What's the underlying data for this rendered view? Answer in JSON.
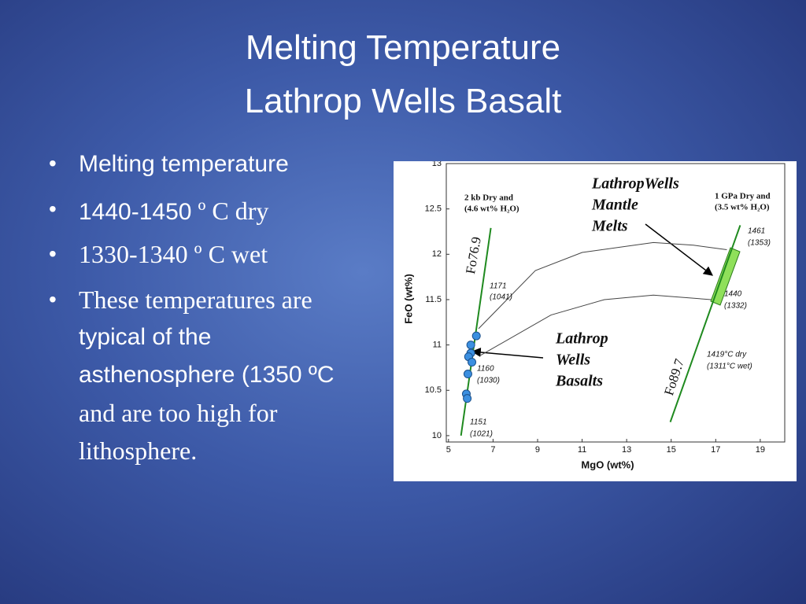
{
  "slide": {
    "title": [
      "Melting Temperature",
      "Lathrop Wells Basalt"
    ],
    "bullets": [
      [
        "Melting temperature"
      ],
      [
        "1440-1450",
        " º C dry"
      ],
      [
        "1330-1340 º C wet"
      ],
      [
        "These temperatures are",
        "typical of the",
        "asthenosphere (1350 ºC",
        "and are too high for",
        "lithosphere."
      ]
    ]
  },
  "chart_data": {
    "type": "scatter",
    "xlabel": "MgO (wt%)",
    "ylabel": "FeO (wt%)",
    "xlim": [
      4.9,
      20.1
    ],
    "ylim": [
      9.93,
      13
    ],
    "xticks": [
      5,
      7,
      9,
      11,
      13,
      15,
      17,
      19
    ],
    "yticks": [
      10,
      10.5,
      11,
      11.5,
      12,
      12.5,
      13
    ],
    "points": {
      "color": "#3b8fe0",
      "x": [
        6.25,
        6.0,
        6.0,
        5.9,
        6.05,
        5.87,
        5.8,
        5.84
      ],
      "y": [
        11.1,
        11.0,
        10.91,
        10.87,
        10.81,
        10.68,
        10.46,
        10.41
      ]
    },
    "lines": [
      {
        "label": "Fo76.9",
        "color": "#1f8a1f",
        "x": [
          5.56,
          6.9
        ],
        "y": [
          10,
          12.29
        ]
      },
      {
        "label": "Fo89.7",
        "color": "#1f8a1f",
        "x": [
          14.96,
          18.1
        ],
        "y": [
          10.15,
          12.32
        ]
      }
    ],
    "curves": [
      {
        "color": "#444444",
        "x": [
          6.35,
          8.9,
          11,
          14.2,
          16,
          17.5
        ],
        "y": [
          11.18,
          11.82,
          12.02,
          12.13,
          12.1,
          12.05
        ]
      },
      {
        "color": "#444444",
        "x": [
          6.4,
          9.6,
          12,
          14.2,
          16.8
        ],
        "y": [
          10.88,
          11.33,
          11.5,
          11.55,
          11.5
        ]
      }
    ],
    "annotations": [
      [
        "2 kb Dry and",
        "(4.6 wt% H₂O)"
      ],
      [
        "1 GPa Dry and",
        "(3.5 wt% H₂O)"
      ],
      [
        "LathropWells",
        "Mantle",
        "Melts"
      ],
      [
        "Lathrop",
        "Wells",
        "Basalts"
      ],
      [
        "1171",
        "(1041)"
      ],
      [
        "1160",
        "(1030)"
      ],
      [
        "1151",
        "(1021)"
      ],
      [
        "1461",
        "(1353)"
      ],
      [
        "1440",
        "(1332)"
      ],
      [
        "1419°C dry",
        "(1311°C wet)"
      ]
    ]
  }
}
